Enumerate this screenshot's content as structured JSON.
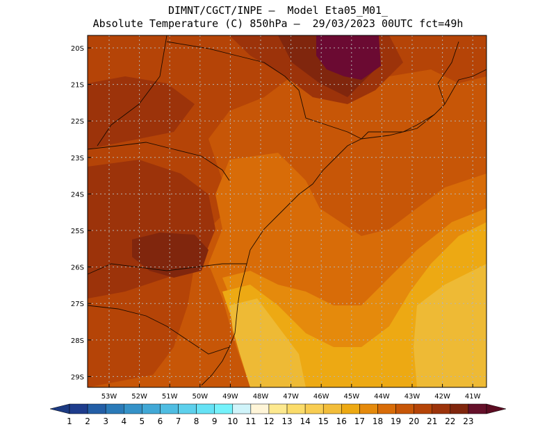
{
  "title_line1": "DIMNT/CGCT/INPE —  Model Eta05_M01_",
  "title_line2": "Absolute Temperature (C) 850hPa —  29/03/2023 00UTC fct=49h",
  "lat_labels": [
    "20S",
    "21S",
    "22S",
    "23S",
    "24S",
    "25S",
    "26S",
    "27S",
    "28S",
    "29S"
  ],
  "lon_labels": [
    "53W",
    "52W",
    "51W",
    "50W",
    "49W",
    "48W",
    "47W",
    "46W",
    "45W",
    "44W",
    "43W",
    "42W",
    "41W"
  ],
  "colorbar": {
    "labels": [
      "1",
      "2",
      "3",
      "4",
      "5",
      "6",
      "7",
      "8",
      "9",
      "10",
      "11",
      "12",
      "13",
      "14",
      "15",
      "16",
      "17",
      "18",
      "19",
      "20",
      "21",
      "22",
      "23"
    ],
    "colors": [
      "#1e3c8c",
      "#235ea6",
      "#2a7ab8",
      "#3592c8",
      "#41a8d6",
      "#4fbde2",
      "#5dd0ec",
      "#66e2f5",
      "#75f2fb",
      "#d0f4fa",
      "#fff5d8",
      "#fde98f",
      "#fbdc6a",
      "#f8cd52",
      "#f2bd3a",
      "#eda913",
      "#e58a0c",
      "#d86c08",
      "#c75607",
      "#b54407",
      "#9c330a",
      "#80260d",
      "#65102a"
    ],
    "low_arrow_color": "#1c3a82",
    "high_arrow_color": "#5c0c22"
  },
  "map_colors": {
    "t15": "#eeba35",
    "t16": "#eda913",
    "t17": "#e58a0c",
    "t18": "#d86c08",
    "t19": "#c75607",
    "t20": "#b54407",
    "t21": "#9c330a",
    "t22": "#80260d",
    "t23": "#6b0a32",
    "outline": "#1a0a00",
    "grid": "#b4b4b4"
  }
}
